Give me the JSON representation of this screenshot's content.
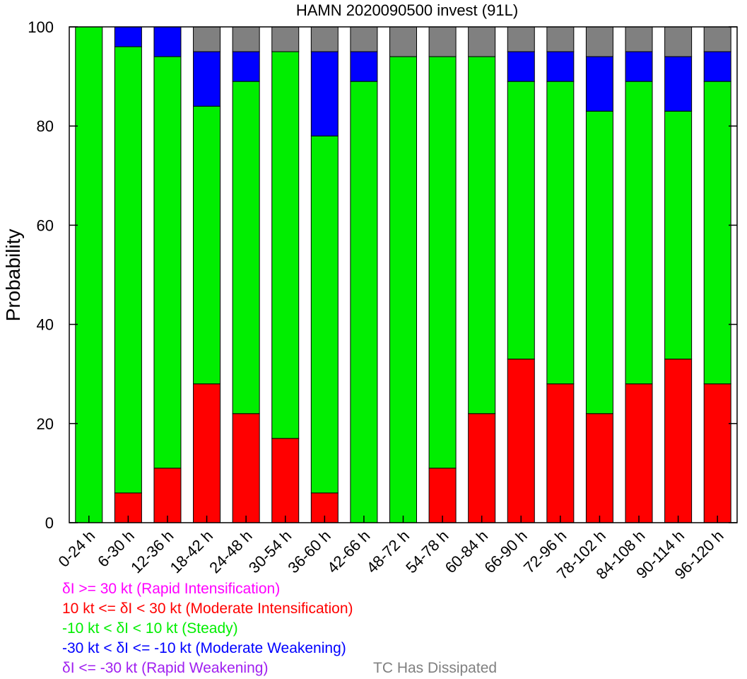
{
  "chart_data": {
    "type": "bar",
    "stacked": true,
    "title": "HAMN 2020090500 invest (91L)",
    "xlabel": "",
    "ylabel": "Probability",
    "ylim": [
      0,
      100
    ],
    "yticks": [
      0,
      20,
      40,
      60,
      80,
      100
    ],
    "grid": false,
    "categories": [
      "0-24 h",
      "6-30 h",
      "12-36 h",
      "18-42 h",
      "24-48 h",
      "30-54 h",
      "36-60 h",
      "42-66 h",
      "48-72 h",
      "54-78 h",
      "60-84 h",
      "66-90 h",
      "72-96 h",
      "78-102 h",
      "84-108 h",
      "90-114 h",
      "96-120 h"
    ],
    "series": [
      {
        "key": "ri",
        "color": "#ff00ff",
        "values": [
          0,
          0,
          0,
          0,
          0,
          0,
          0,
          0,
          0,
          0,
          0,
          0,
          0,
          0,
          0,
          0,
          0
        ]
      },
      {
        "key": "mi",
        "color": "#ff0000",
        "values": [
          0,
          6,
          11,
          28,
          22,
          17,
          6,
          0,
          0,
          11,
          22,
          33,
          28,
          22,
          28,
          33,
          28
        ]
      },
      {
        "key": "steady",
        "color": "#00ee00",
        "values": [
          100,
          90,
          83,
          56,
          67,
          78,
          72,
          89,
          94,
          83,
          72,
          56,
          61,
          61,
          61,
          50,
          61
        ]
      },
      {
        "key": "mw",
        "color": "#0000ff",
        "values": [
          0,
          4,
          6,
          11,
          6,
          0,
          17,
          6,
          0,
          0,
          0,
          6,
          6,
          11,
          6,
          11,
          6
        ]
      },
      {
        "key": "rw",
        "color": "#a020f0",
        "values": [
          0,
          0,
          0,
          0,
          0,
          0,
          0,
          0,
          0,
          0,
          0,
          0,
          0,
          0,
          0,
          0,
          0
        ]
      },
      {
        "key": "dissipated",
        "color": "#808080",
        "values": [
          0,
          0,
          0,
          5,
          5,
          5,
          5,
          5,
          6,
          6,
          6,
          5,
          5,
          6,
          5,
          6,
          5
        ]
      }
    ]
  },
  "legend": {
    "ri": {
      "text": "δI >= 30 kt (Rapid Intensification)",
      "color": "#ff00ff"
    },
    "mi": {
      "text": "10 kt <= δI < 30 kt (Moderate Intensification)",
      "color": "#ff0000"
    },
    "steady": {
      "text": "-10 kt < δI < 10 kt (Steady)",
      "color": "#00ee00"
    },
    "mw": {
      "text": "-30 kt < δI <= -10 kt (Moderate Weakening)",
      "color": "#0000ff"
    },
    "rw": {
      "text": "δI <= -30 kt (Rapid Weakening)",
      "color": "#a020f0"
    },
    "dissipated": {
      "text": "TC Has Dissipated",
      "color": "#808080"
    }
  }
}
